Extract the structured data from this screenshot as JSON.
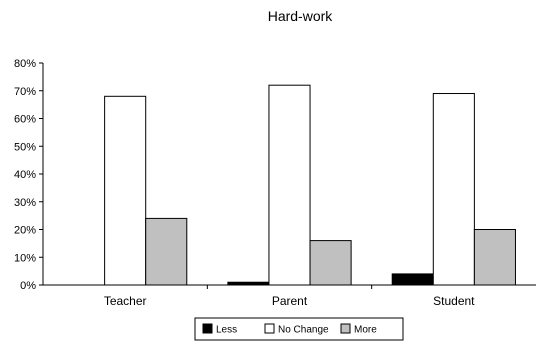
{
  "chart_data": {
    "type": "bar",
    "title": "Hard-work",
    "categories": [
      "Teacher",
      "Parent",
      "Student"
    ],
    "series": [
      {
        "name": "Less",
        "values": [
          0,
          1,
          4
        ],
        "color": "#000000"
      },
      {
        "name": "No Change",
        "values": [
          68,
          72,
          69
        ],
        "color": "#ffffff"
      },
      {
        "name": "More",
        "values": [
          24,
          16,
          20
        ],
        "color": "#c0c0c0"
      }
    ],
    "yticks": [
      "0%",
      "10%",
      "20%",
      "30%",
      "40%",
      "50%",
      "60%",
      "70%",
      "80%"
    ],
    "ylim": [
      0,
      80
    ],
    "grid": false,
    "legend_position": "bottom"
  }
}
